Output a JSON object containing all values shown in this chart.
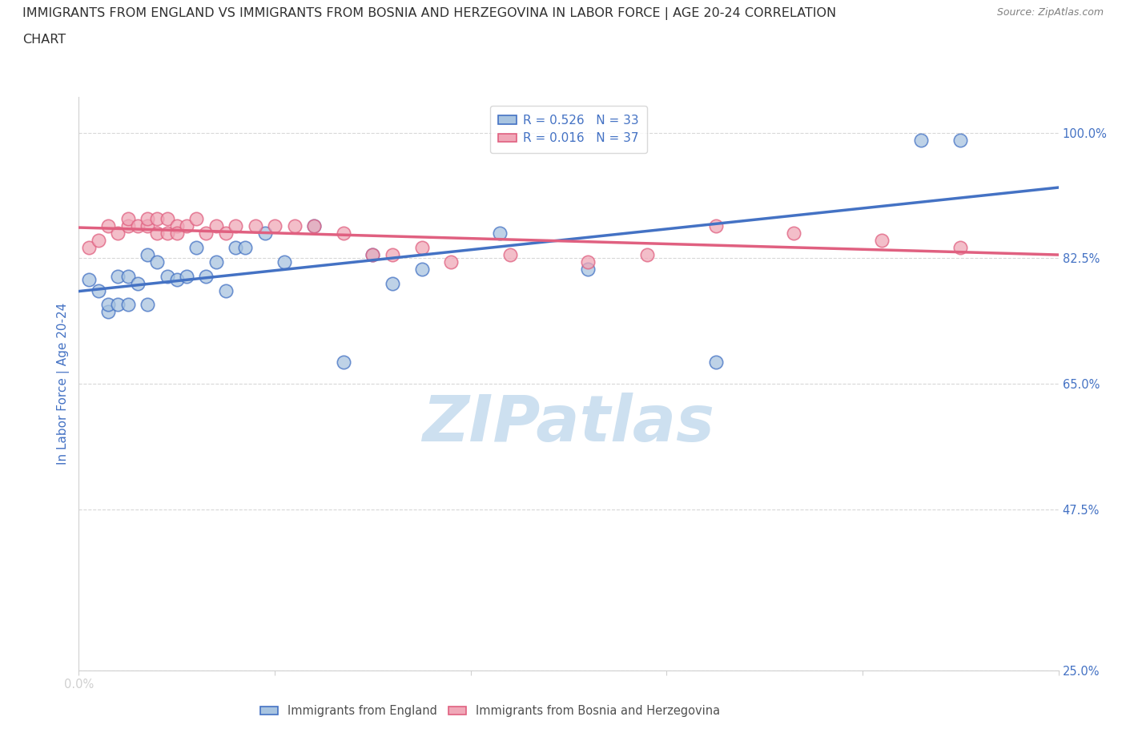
{
  "title_line1": "IMMIGRANTS FROM ENGLAND VS IMMIGRANTS FROM BOSNIA AND HERZEGOVINA IN LABOR FORCE | AGE 20-24 CORRELATION",
  "title_line2": "CHART",
  "source_text": "Source: ZipAtlas.com",
  "ylabel": "In Labor Force | Age 20-24",
  "xlim": [
    0.0,
    1.0
  ],
  "ylim": [
    0.25,
    1.05
  ],
  "yticks": [
    0.25,
    0.475,
    0.65,
    0.825,
    1.0
  ],
  "ytick_labels": [
    "25.0%",
    "47.5%",
    "65.0%",
    "82.5%",
    "100.0%"
  ],
  "xticks": [
    0.0,
    0.2,
    0.4,
    0.6,
    0.8,
    1.0
  ],
  "xtick_labels": [
    "0.0%",
    "",
    "",
    "",
    "",
    ""
  ],
  "england_R": 0.526,
  "england_N": 33,
  "bosnia_R": 0.016,
  "bosnia_N": 37,
  "england_color": "#a8c4e0",
  "bosnia_color": "#f0a8b8",
  "england_line_color": "#4472c4",
  "bosnia_line_color": "#e06080",
  "tick_color": "#4472c4",
  "watermark_color": "#cde0f0",
  "legend_R_color": "#4472c4",
  "england_scatter_x": [
    0.01,
    0.02,
    0.03,
    0.03,
    0.04,
    0.04,
    0.05,
    0.05,
    0.06,
    0.07,
    0.07,
    0.08,
    0.09,
    0.1,
    0.11,
    0.12,
    0.13,
    0.14,
    0.15,
    0.16,
    0.17,
    0.19,
    0.21,
    0.24,
    0.27,
    0.3,
    0.32,
    0.35,
    0.43,
    0.52,
    0.65,
    0.86,
    0.9
  ],
  "england_scatter_y": [
    0.795,
    0.78,
    0.75,
    0.76,
    0.8,
    0.76,
    0.76,
    0.8,
    0.79,
    0.83,
    0.76,
    0.82,
    0.8,
    0.795,
    0.8,
    0.84,
    0.8,
    0.82,
    0.78,
    0.84,
    0.84,
    0.86,
    0.82,
    0.87,
    0.68,
    0.83,
    0.79,
    0.81,
    0.86,
    0.81,
    0.68,
    0.99,
    0.99
  ],
  "bosnia_scatter_x": [
    0.01,
    0.02,
    0.03,
    0.04,
    0.05,
    0.05,
    0.06,
    0.07,
    0.07,
    0.08,
    0.08,
    0.09,
    0.09,
    0.1,
    0.1,
    0.11,
    0.12,
    0.13,
    0.14,
    0.15,
    0.16,
    0.18,
    0.2,
    0.22,
    0.24,
    0.27,
    0.3,
    0.32,
    0.35,
    0.38,
    0.44,
    0.52,
    0.58,
    0.65,
    0.73,
    0.82,
    0.9
  ],
  "bosnia_scatter_y": [
    0.84,
    0.85,
    0.87,
    0.86,
    0.87,
    0.88,
    0.87,
    0.87,
    0.88,
    0.86,
    0.88,
    0.86,
    0.88,
    0.87,
    0.86,
    0.87,
    0.88,
    0.86,
    0.87,
    0.86,
    0.87,
    0.87,
    0.87,
    0.87,
    0.87,
    0.86,
    0.83,
    0.83,
    0.84,
    0.82,
    0.83,
    0.82,
    0.83,
    0.87,
    0.86,
    0.85,
    0.84
  ]
}
